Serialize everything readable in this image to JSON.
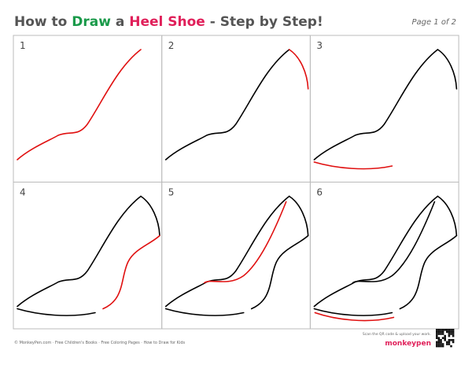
{
  "header": {
    "title": [
      "How to ",
      "Draw",
      " a ",
      "Heel Shoe",
      " - Step by Step!"
    ],
    "page": "Page 1 of 2"
  },
  "steps": [
    "1",
    "2",
    "3",
    "4",
    "5",
    "6"
  ],
  "footer": {
    "credits": "© MonkeyPen.com · Free Children's Books · Free Coloring Pages · How to Draw for Kids",
    "scan": "Scan the QR code & upload your work.",
    "logo": "monkeypen"
  }
}
